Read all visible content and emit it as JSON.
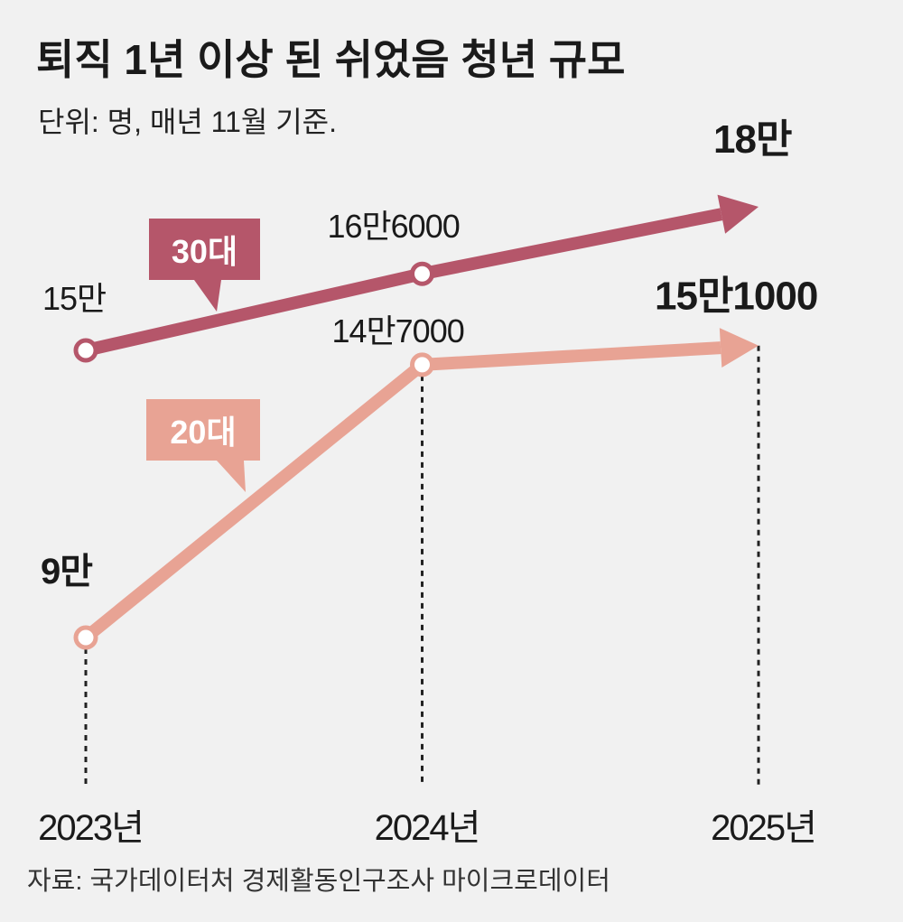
{
  "chart_data": {
    "type": "line",
    "title": "퇴직 1년 이상 된 쉬었음 청년 규모",
    "subtitle": "단위: 명, 매년 11월 기준.",
    "source": "자료: 국가데이터처 경제활동인구조사 마이크로데이터",
    "categories": [
      "2023년",
      "2024년",
      "2025년"
    ],
    "x": [
      2023,
      2024,
      2025
    ],
    "unit": "명",
    "series": [
      {
        "name": "30대",
        "color": "#b5566a",
        "values": [
          150000,
          166000,
          180000
        ],
        "labels": [
          "15만",
          "16만6000",
          "18만"
        ]
      },
      {
        "name": "20대",
        "color": "#e8a394",
        "values": [
          90000,
          147000,
          151000
        ],
        "labels": [
          "9만",
          "14만7000",
          "15만1000"
        ]
      }
    ],
    "grid": false,
    "legend": "inline callouts"
  }
}
